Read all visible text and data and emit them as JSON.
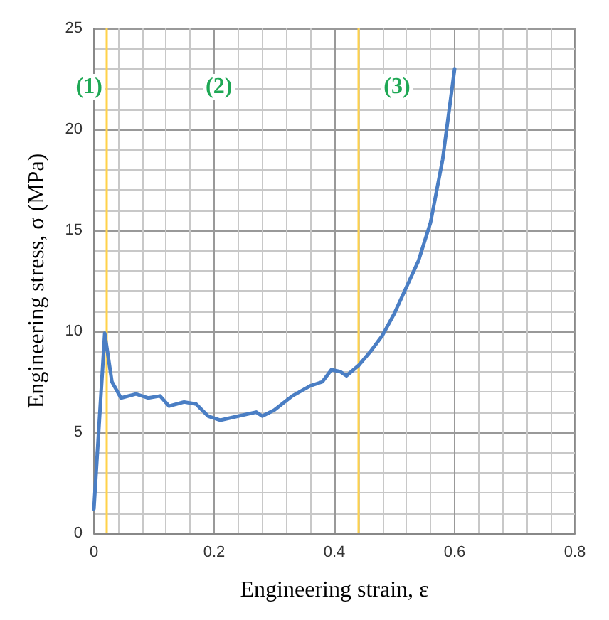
{
  "chart_data": {
    "type": "line",
    "xlabel": "Engineering strain, ε",
    "ylabel": "Engineering stress, σ (MPa)",
    "series": [
      {
        "color": "#4a7ec4",
        "x": [
          0.0,
          0.018,
          0.03,
          0.045,
          0.07,
          0.09,
          0.11,
          0.125,
          0.15,
          0.17,
          0.19,
          0.21,
          0.24,
          0.27,
          0.28,
          0.3,
          0.33,
          0.36,
          0.38,
          0.395,
          0.41,
          0.42,
          0.44,
          0.46,
          0.48,
          0.5,
          0.52,
          0.54,
          0.56,
          0.58,
          0.6
        ],
        "values": [
          1.2,
          9.9,
          7.5,
          6.7,
          6.9,
          6.7,
          6.8,
          6.3,
          6.5,
          6.4,
          5.8,
          5.6,
          5.8,
          6.0,
          5.8,
          6.1,
          6.8,
          7.3,
          7.5,
          8.1,
          8.0,
          7.8,
          8.3,
          9.0,
          9.8,
          10.9,
          12.2,
          13.5,
          15.4,
          18.5,
          23
        ]
      }
    ],
    "xlim": [
      0,
      0.8
    ],
    "xticks": [
      0,
      0.2,
      0.4,
      0.6,
      0.8
    ],
    "ylim": [
      0,
      25
    ],
    "yticks": [
      0,
      5,
      10,
      15,
      20,
      25
    ],
    "grid": true,
    "marker": "none",
    "line_style": "solid",
    "ref_lines": [
      {
        "axis": "x",
        "value": 0.02,
        "color": "#ffd24a"
      },
      {
        "axis": "x",
        "value": 0.44,
        "color": "#ffd24a"
      }
    ],
    "annotations": [
      "(1)",
      "(2)",
      "(3)"
    ]
  }
}
